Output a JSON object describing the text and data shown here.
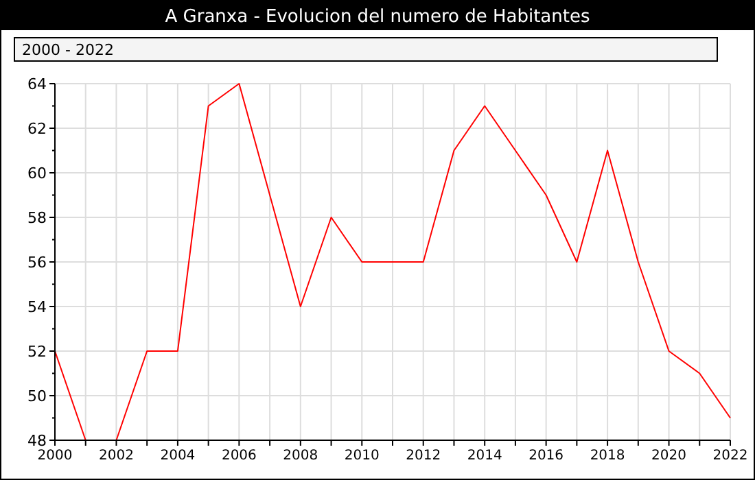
{
  "chart_data": {
    "type": "line",
    "title": "A Granxa - Evolucion del numero de Habitantes",
    "subtitle": "2000 - 2022",
    "x": [
      2000,
      2001,
      2002,
      2003,
      2004,
      2005,
      2006,
      2007,
      2008,
      2009,
      2010,
      2011,
      2012,
      2013,
      2014,
      2015,
      2016,
      2017,
      2018,
      2019,
      2020,
      2021,
      2022
    ],
    "series": [
      {
        "color": "#ff0000",
        "values": [
          52,
          48,
          48,
          52,
          52,
          63,
          64,
          59,
          54,
          58,
          56,
          56,
          56,
          61,
          63,
          61,
          59,
          56,
          61,
          56,
          52,
          51,
          49
        ]
      }
    ],
    "xlim": [
      2000,
      2022
    ],
    "xticks": [
      2000,
      {
        "value": 2001,
        "label": null
      },
      2002,
      {
        "value": 2003,
        "label": null
      },
      2004,
      {
        "value": 2005,
        "label": null
      },
      2006,
      {
        "value": 2007,
        "label": null
      },
      2008,
      {
        "value": 2009,
        "label": null
      },
      2010,
      {
        "value": 2011,
        "label": null
      },
      2012,
      {
        "value": 2013,
        "label": null
      },
      2014,
      {
        "value": 2015,
        "label": null
      },
      2016,
      {
        "value": 2017,
        "label": null
      },
      2018,
      {
        "value": 2019,
        "label": null
      },
      2020,
      {
        "value": 2021,
        "label": null
      },
      2022
    ],
    "ylim": [
      48,
      64
    ],
    "yticks": [
      48,
      {
        "value": 49,
        "label": null
      },
      50,
      {
        "value": 51,
        "label": null
      },
      52,
      {
        "value": 53,
        "label": null
      },
      54,
      {
        "value": 55,
        "label": null
      },
      56,
      {
        "value": 57,
        "label": null
      },
      58,
      {
        "value": 59,
        "label": null
      },
      60,
      {
        "value": 61,
        "label": null
      },
      62,
      {
        "value": 63,
        "label": null
      },
      64
    ],
    "grid": true,
    "marker": "none",
    "line_style": "solid"
  }
}
